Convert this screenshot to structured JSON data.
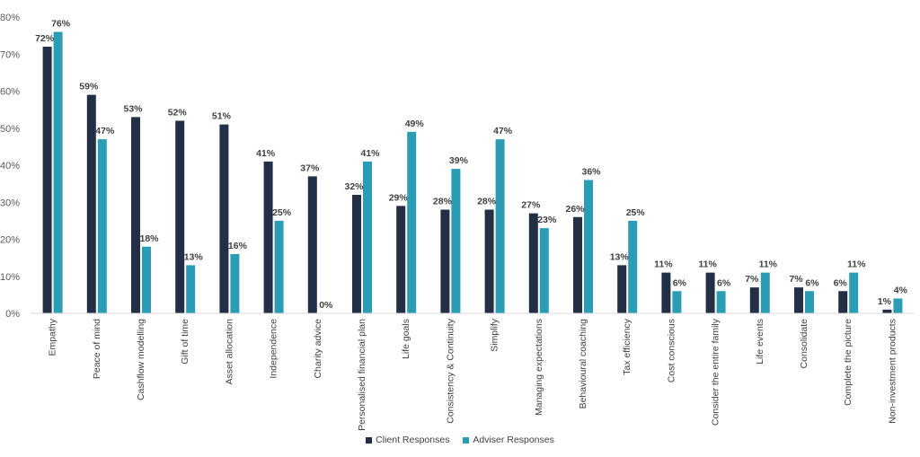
{
  "chart_data": {
    "type": "bar",
    "categories": [
      "Empathy",
      "Peace of mind",
      "Cashflow modelling",
      "Gift of time",
      "Asset allocation",
      "Independence",
      "Charity advice",
      "Personalised financial plan",
      "Life goals",
      "Consistency & Continuity",
      "Simplify",
      "Managing expectations",
      "Behavioural coaching",
      "Tax efficiency",
      "Cost conscious",
      "Consider the entire family",
      "Life events",
      "Consolidate",
      "Complete the picture",
      "Non-investment products"
    ],
    "series": [
      {
        "name": "Client Responses",
        "color": "#232f45",
        "values": [
          72,
          59,
          53,
          52,
          51,
          41,
          37,
          32,
          29,
          28,
          28,
          27,
          26,
          13,
          11,
          11,
          7,
          7,
          6,
          1
        ]
      },
      {
        "name": "Adviser Responses",
        "color": "#2a9db5",
        "values": [
          76,
          47,
          18,
          13,
          16,
          25,
          0,
          41,
          49,
          39,
          47,
          23,
          36,
          25,
          6,
          6,
          11,
          6,
          11,
          4
        ]
      }
    ],
    "yticks": [
      "0%",
      "10%",
      "20%",
      "30%",
      "40%",
      "50%",
      "60%",
      "70%",
      "80%"
    ],
    "ylim": [
      0,
      80
    ],
    "value_suffix": "%",
    "legend_position": "bottom",
    "grid": false
  }
}
